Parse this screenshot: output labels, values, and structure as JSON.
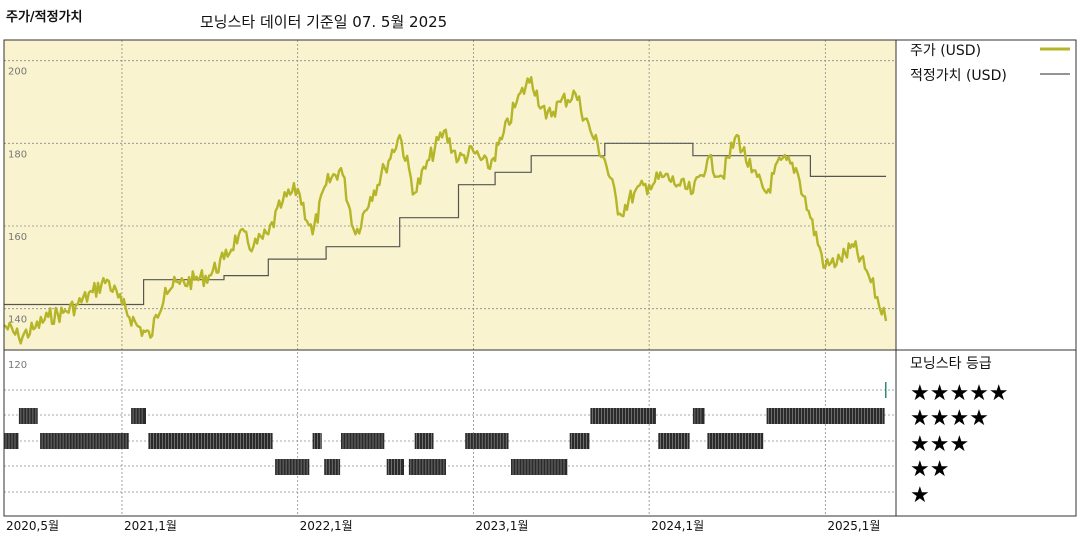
{
  "header": {
    "title": "주가/적정가치",
    "subtitle": "모닝스타 데이터 기준일 07. 5월 2025"
  },
  "legend": {
    "price_label": "주가 (USD)",
    "fair_label": "적정가치 (USD)",
    "rating_title": "모닝스타 등급",
    "stars": [
      "★★★★★",
      "★★★★",
      "★★★",
      "★★",
      "★"
    ]
  },
  "colors": {
    "price": "#b5b52a",
    "fair": "#555555",
    "panel_bg": "#f9f4cf",
    "rating_bar": "#2b2b2b",
    "rating_5": "#2e8b78"
  },
  "chart_data": {
    "type": "line",
    "x_start": "2020-05-01",
    "x_end": "2025-05-07",
    "ylim": [
      130,
      205
    ],
    "yticks": [
      200,
      180,
      160,
      140,
      120
    ],
    "xticks": [
      {
        "date": "2020-05-01",
        "label": "2020,5월"
      },
      {
        "date": "2021-01-01",
        "label": "2021,1월"
      },
      {
        "date": "2022-01-01",
        "label": "2022,1월"
      },
      {
        "date": "2023-01-01",
        "label": "2023,1월"
      },
      {
        "date": "2024-01-01",
        "label": "2024,1월"
      },
      {
        "date": "2025-01-01",
        "label": "2025,1월"
      }
    ],
    "series": [
      {
        "name": "주가 (USD)",
        "points": [
          [
            "2020-05-01",
            136
          ],
          [
            "2020-06-01",
            133
          ],
          [
            "2020-07-01",
            135
          ],
          [
            "2020-08-01",
            138
          ],
          [
            "2020-09-01",
            139
          ],
          [
            "2020-10-01",
            141
          ],
          [
            "2020-11-01",
            144
          ],
          [
            "2020-12-01",
            147
          ],
          [
            "2021-01-01",
            141
          ],
          [
            "2021-02-01",
            136
          ],
          [
            "2021-03-01",
            133
          ],
          [
            "2021-04-01",
            145
          ],
          [
            "2021-05-01",
            146
          ],
          [
            "2021-06-01",
            147
          ],
          [
            "2021-07-01",
            148
          ],
          [
            "2021-08-01",
            152
          ],
          [
            "2021-09-01",
            158
          ],
          [
            "2021-10-01",
            155
          ],
          [
            "2021-11-01",
            158
          ],
          [
            "2021-12-01",
            166
          ],
          [
            "2022-01-01",
            169
          ],
          [
            "2022-02-01",
            158
          ],
          [
            "2022-03-01",
            170
          ],
          [
            "2022-04-01",
            174
          ],
          [
            "2022-05-01",
            158
          ],
          [
            "2022-06-01",
            167
          ],
          [
            "2022-07-01",
            174
          ],
          [
            "2022-08-01",
            182
          ],
          [
            "2022-09-01",
            168
          ],
          [
            "2022-10-01",
            176
          ],
          [
            "2022-11-01",
            183
          ],
          [
            "2022-12-01",
            176
          ],
          [
            "2023-01-01",
            178
          ],
          [
            "2023-02-01",
            174
          ],
          [
            "2023-03-01",
            181
          ],
          [
            "2023-04-01",
            190
          ],
          [
            "2023-05-01",
            196
          ],
          [
            "2023-06-01",
            186
          ],
          [
            "2023-07-01",
            190
          ],
          [
            "2023-08-01",
            192
          ],
          [
            "2023-09-01",
            183
          ],
          [
            "2023-10-01",
            176
          ],
          [
            "2023-11-01",
            163
          ],
          [
            "2023-12-01",
            168
          ],
          [
            "2024-01-01",
            170
          ],
          [
            "2024-02-01",
            172
          ],
          [
            "2024-03-01",
            170
          ],
          [
            "2024-04-01",
            168
          ],
          [
            "2024-05-01",
            176
          ],
          [
            "2024-06-01",
            172
          ],
          [
            "2024-07-01",
            182
          ],
          [
            "2024-08-01",
            173
          ],
          [
            "2024-09-01",
            168
          ],
          [
            "2024-10-01",
            176
          ],
          [
            "2024-11-01",
            174
          ],
          [
            "2024-12-01",
            162
          ],
          [
            "2025-01-01",
            150
          ],
          [
            "2025-02-01",
            152
          ],
          [
            "2025-03-01",
            155
          ],
          [
            "2025-04-01",
            148
          ],
          [
            "2025-05-07",
            137
          ]
        ]
      },
      {
        "name": "적정가치 (USD)",
        "steps": [
          [
            "2020-05-01",
            141
          ],
          [
            "2021-02-15",
            147
          ],
          [
            "2021-08-01",
            148
          ],
          [
            "2021-11-01",
            152
          ],
          [
            "2022-03-01",
            155
          ],
          [
            "2022-08-01",
            162
          ],
          [
            "2022-12-01",
            170
          ],
          [
            "2023-02-15",
            173
          ],
          [
            "2023-05-01",
            177
          ],
          [
            "2023-10-01",
            180
          ],
          [
            "2024-04-01",
            177
          ],
          [
            "2024-12-01",
            172
          ],
          [
            "2025-05-07",
            172
          ]
        ]
      }
    ],
    "rating_rows": [
      {
        "stars": 5,
        "segments": [
          [
            "2025-05-05",
            "2025-05-07"
          ]
        ]
      },
      {
        "stars": 4,
        "segments": [
          [
            "2020-06-01",
            "2020-07-10"
          ],
          [
            "2021-01-20",
            "2021-02-20"
          ],
          [
            "2023-09-01",
            "2024-01-15"
          ],
          [
            "2024-04-01",
            "2024-04-25"
          ],
          [
            "2024-09-01",
            "2025-05-04"
          ]
        ]
      },
      {
        "stars": 3,
        "segments": [
          [
            "2020-05-01",
            "2020-05-31"
          ],
          [
            "2020-07-15",
            "2021-01-15"
          ],
          [
            "2021-02-25",
            "2021-11-10"
          ],
          [
            "2022-02-01",
            "2022-02-20"
          ],
          [
            "2022-04-01",
            "2022-06-30"
          ],
          [
            "2022-09-01",
            "2022-10-10"
          ],
          [
            "2022-12-15",
            "2023-03-15"
          ],
          [
            "2023-07-20",
            "2023-08-30"
          ],
          [
            "2024-01-20",
            "2024-03-25"
          ],
          [
            "2024-05-01",
            "2024-08-25"
          ]
        ]
      },
      {
        "stars": 2,
        "segments": [
          [
            "2021-11-15",
            "2022-01-25"
          ],
          [
            "2022-02-25",
            "2022-03-30"
          ],
          [
            "2022-07-05",
            "2022-08-10"
          ],
          [
            "2022-08-20",
            "2022-11-05"
          ],
          [
            "2023-03-20",
            "2023-07-15"
          ]
        ]
      },
      {
        "stars": 1,
        "segments": []
      }
    ]
  }
}
